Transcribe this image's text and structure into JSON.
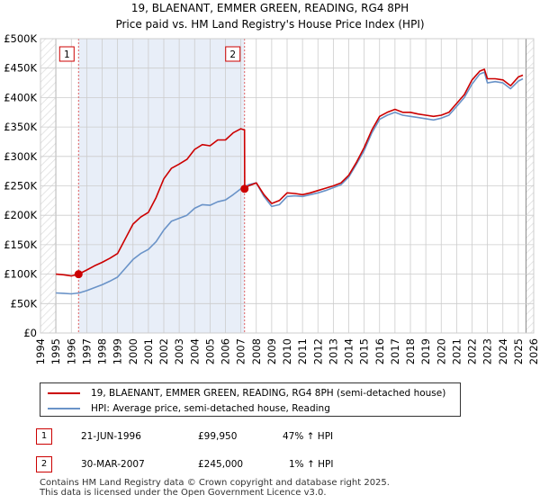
{
  "chart_data": {
    "type": "line",
    "title": "19, BLAENANT, EMMER GREEN, READING, RG4 8PH",
    "subtitle": "Price paid vs. HM Land Registry's House Price Index (HPI)",
    "xlabel": "",
    "ylabel": "",
    "xlim": [
      1994,
      2026
    ],
    "ylim": [
      0,
      500000
    ],
    "x_ticks": [
      "1994",
      "1995",
      "1996",
      "1997",
      "1998",
      "1999",
      "2000",
      "2001",
      "2002",
      "2003",
      "2004",
      "2005",
      "2006",
      "2007",
      "2008",
      "2009",
      "2010",
      "2011",
      "2012",
      "2013",
      "2014",
      "2015",
      "2016",
      "2017",
      "2018",
      "2019",
      "2020",
      "2021",
      "2022",
      "2023",
      "2024",
      "2025",
      "2026"
    ],
    "y_ticks": [
      {
        "value": 0,
        "label": "£0"
      },
      {
        "value": 50000,
        "label": "£50K"
      },
      {
        "value": 100000,
        "label": "£100K"
      },
      {
        "value": 150000,
        "label": "£150K"
      },
      {
        "value": 200000,
        "label": "£200K"
      },
      {
        "value": 250000,
        "label": "£250K"
      },
      {
        "value": 300000,
        "label": "£300K"
      },
      {
        "value": 350000,
        "label": "£350K"
      },
      {
        "value": 400000,
        "label": "£400K"
      },
      {
        "value": 450000,
        "label": "£450K"
      },
      {
        "value": 500000,
        "label": "£500K"
      }
    ],
    "grid": true,
    "data_start": 1995.0,
    "data_end": 2025.5,
    "series": [
      {
        "name": "19, BLAENANT, EMMER GREEN, READING, RG4 8PH (semi-detached house)",
        "color": "#cc0000",
        "x": [
          1995.0,
          1995.5,
          1996.0,
          1996.47,
          1997.0,
          1997.5,
          1998.0,
          1998.5,
          1999.0,
          1999.5,
          2000.0,
          2000.5,
          2001.0,
          2001.5,
          2002.0,
          2002.5,
          2003.0,
          2003.5,
          2004.0,
          2004.5,
          2005.0,
          2005.5,
          2006.0,
          2006.5,
          2007.0,
          2007.24,
          2007.25,
          2007.5,
          2008.0,
          2008.5,
          2009.0,
          2009.5,
          2010.0,
          2010.5,
          2011.0,
          2011.5,
          2012.0,
          2012.5,
          2013.0,
          2013.5,
          2014.0,
          2014.5,
          2015.0,
          2015.5,
          2016.0,
          2016.5,
          2017.0,
          2017.5,
          2018.0,
          2018.5,
          2019.0,
          2019.5,
          2020.0,
          2020.5,
          2021.0,
          2021.5,
          2022.0,
          2022.5,
          2022.8,
          2023.0,
          2023.5,
          2024.0,
          2024.5,
          2025.0,
          2025.3
        ],
        "y": [
          100000,
          99000,
          97000,
          99950,
          107000,
          114000,
          120000,
          127000,
          135000,
          160000,
          185000,
          197000,
          205000,
          230000,
          262000,
          280000,
          287000,
          295000,
          312000,
          320000,
          318000,
          328000,
          328000,
          340000,
          347000,
          345000,
          245000,
          250000,
          255000,
          235000,
          220000,
          225000,
          238000,
          237000,
          235000,
          238000,
          242000,
          246000,
          250000,
          255000,
          268000,
          290000,
          315000,
          345000,
          368000,
          375000,
          380000,
          375000,
          375000,
          372000,
          370000,
          368000,
          370000,
          375000,
          390000,
          405000,
          430000,
          445000,
          448000,
          432000,
          432000,
          430000,
          420000,
          435000,
          438000
        ]
      },
      {
        "name": "HPI: Average price, semi-detached house, Reading",
        "color": "#6a93c8",
        "x": [
          1995.0,
          1995.5,
          1996.0,
          1996.5,
          1997.0,
          1997.5,
          1998.0,
          1998.5,
          1999.0,
          1999.5,
          2000.0,
          2000.5,
          2001.0,
          2001.5,
          2002.0,
          2002.5,
          2003.0,
          2003.5,
          2004.0,
          2004.5,
          2005.0,
          2005.5,
          2006.0,
          2006.5,
          2007.0,
          2007.5,
          2008.0,
          2008.5,
          2009.0,
          2009.5,
          2010.0,
          2010.5,
          2011.0,
          2011.5,
          2012.0,
          2012.5,
          2013.0,
          2013.5,
          2014.0,
          2014.5,
          2015.0,
          2015.5,
          2016.0,
          2016.5,
          2017.0,
          2017.5,
          2018.0,
          2018.5,
          2019.0,
          2019.5,
          2020.0,
          2020.5,
          2021.0,
          2021.5,
          2022.0,
          2022.5,
          2022.8,
          2023.0,
          2023.5,
          2024.0,
          2024.5,
          2025.0,
          2025.3
        ],
        "y": [
          68000,
          67500,
          66500,
          68000,
          72000,
          77000,
          82000,
          88000,
          95000,
          110000,
          125000,
          135000,
          142000,
          155000,
          175000,
          190000,
          195000,
          200000,
          212000,
          218000,
          217000,
          223000,
          226000,
          235000,
          245000,
          252000,
          255000,
          232000,
          215000,
          218000,
          232000,
          233000,
          232000,
          235000,
          238000,
          242000,
          247000,
          252000,
          265000,
          287000,
          310000,
          340000,
          363000,
          370000,
          375000,
          370000,
          368000,
          366000,
          364000,
          362000,
          365000,
          370000,
          385000,
          400000,
          423000,
          440000,
          443000,
          425000,
          427000,
          425000,
          415000,
          428000,
          432000
        ]
      }
    ],
    "markers": [
      {
        "label": "1",
        "x": 1996.47,
        "y": 99950
      },
      {
        "label": "2",
        "x": 2007.24,
        "y": 245000
      }
    ],
    "legend_position": "below"
  },
  "transactions": [
    {
      "id": "1",
      "date": "21-JUN-1996",
      "price": "£99,950",
      "hpi": "47% ↑ HPI"
    },
    {
      "id": "2",
      "date": "30-MAR-2007",
      "price": "£245,000",
      "hpi": "1% ↑ HPI"
    }
  ],
  "footer": {
    "line1": "Contains HM Land Registry data © Crown copyright and database right 2025.",
    "line2": "This data is licensed under the Open Government Licence v3.0."
  },
  "colors": {
    "price_line": "#cc0000",
    "hpi_line": "#6a93c8",
    "shade": "#e8eef8",
    "grid": "#cccccc"
  }
}
